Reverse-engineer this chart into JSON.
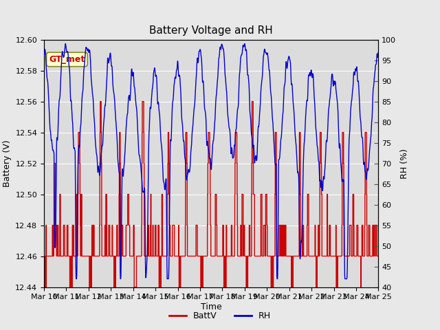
{
  "title": "Battery Voltage and RH",
  "xlabel": "Time",
  "ylabel_left": "Battery (V)",
  "ylabel_right": "RH (%)",
  "annotation_text": "GT_met",
  "annotation_color": "#cc0000",
  "annotation_bg": "#ffffcc",
  "annotation_border": "#888822",
  "ylim_left": [
    12.44,
    12.6
  ],
  "ylim_right": [
    40,
    100
  ],
  "yticks_left": [
    12.44,
    12.46,
    12.48,
    12.5,
    12.52,
    12.54,
    12.56,
    12.58,
    12.6
  ],
  "yticks_right": [
    40,
    45,
    50,
    55,
    60,
    65,
    70,
    75,
    80,
    85,
    90,
    95,
    100
  ],
  "x_tick_labels": [
    "Mar 10",
    "Mar 11",
    "Mar 12",
    "Mar 13",
    "Mar 14",
    "Mar 15",
    "Mar 16",
    "Mar 17",
    "Mar 18",
    "Mar 19",
    "Mar 20",
    "Mar 21",
    "Mar 22",
    "Mar 23",
    "Mar 24",
    "Mar 25"
  ],
  "batt_color": "#cc0000",
  "rh_color": "#0000cc",
  "legend_batt": "BattV",
  "legend_rh": "RH",
  "fig_bg_color": "#e8e8e8",
  "plot_bg_color": "#dcdcdc",
  "n_days": 15,
  "pts_per_day": 96,
  "title_fontsize": 11,
  "axis_fontsize": 9,
  "tick_fontsize": 8,
  "line_width": 1.0
}
